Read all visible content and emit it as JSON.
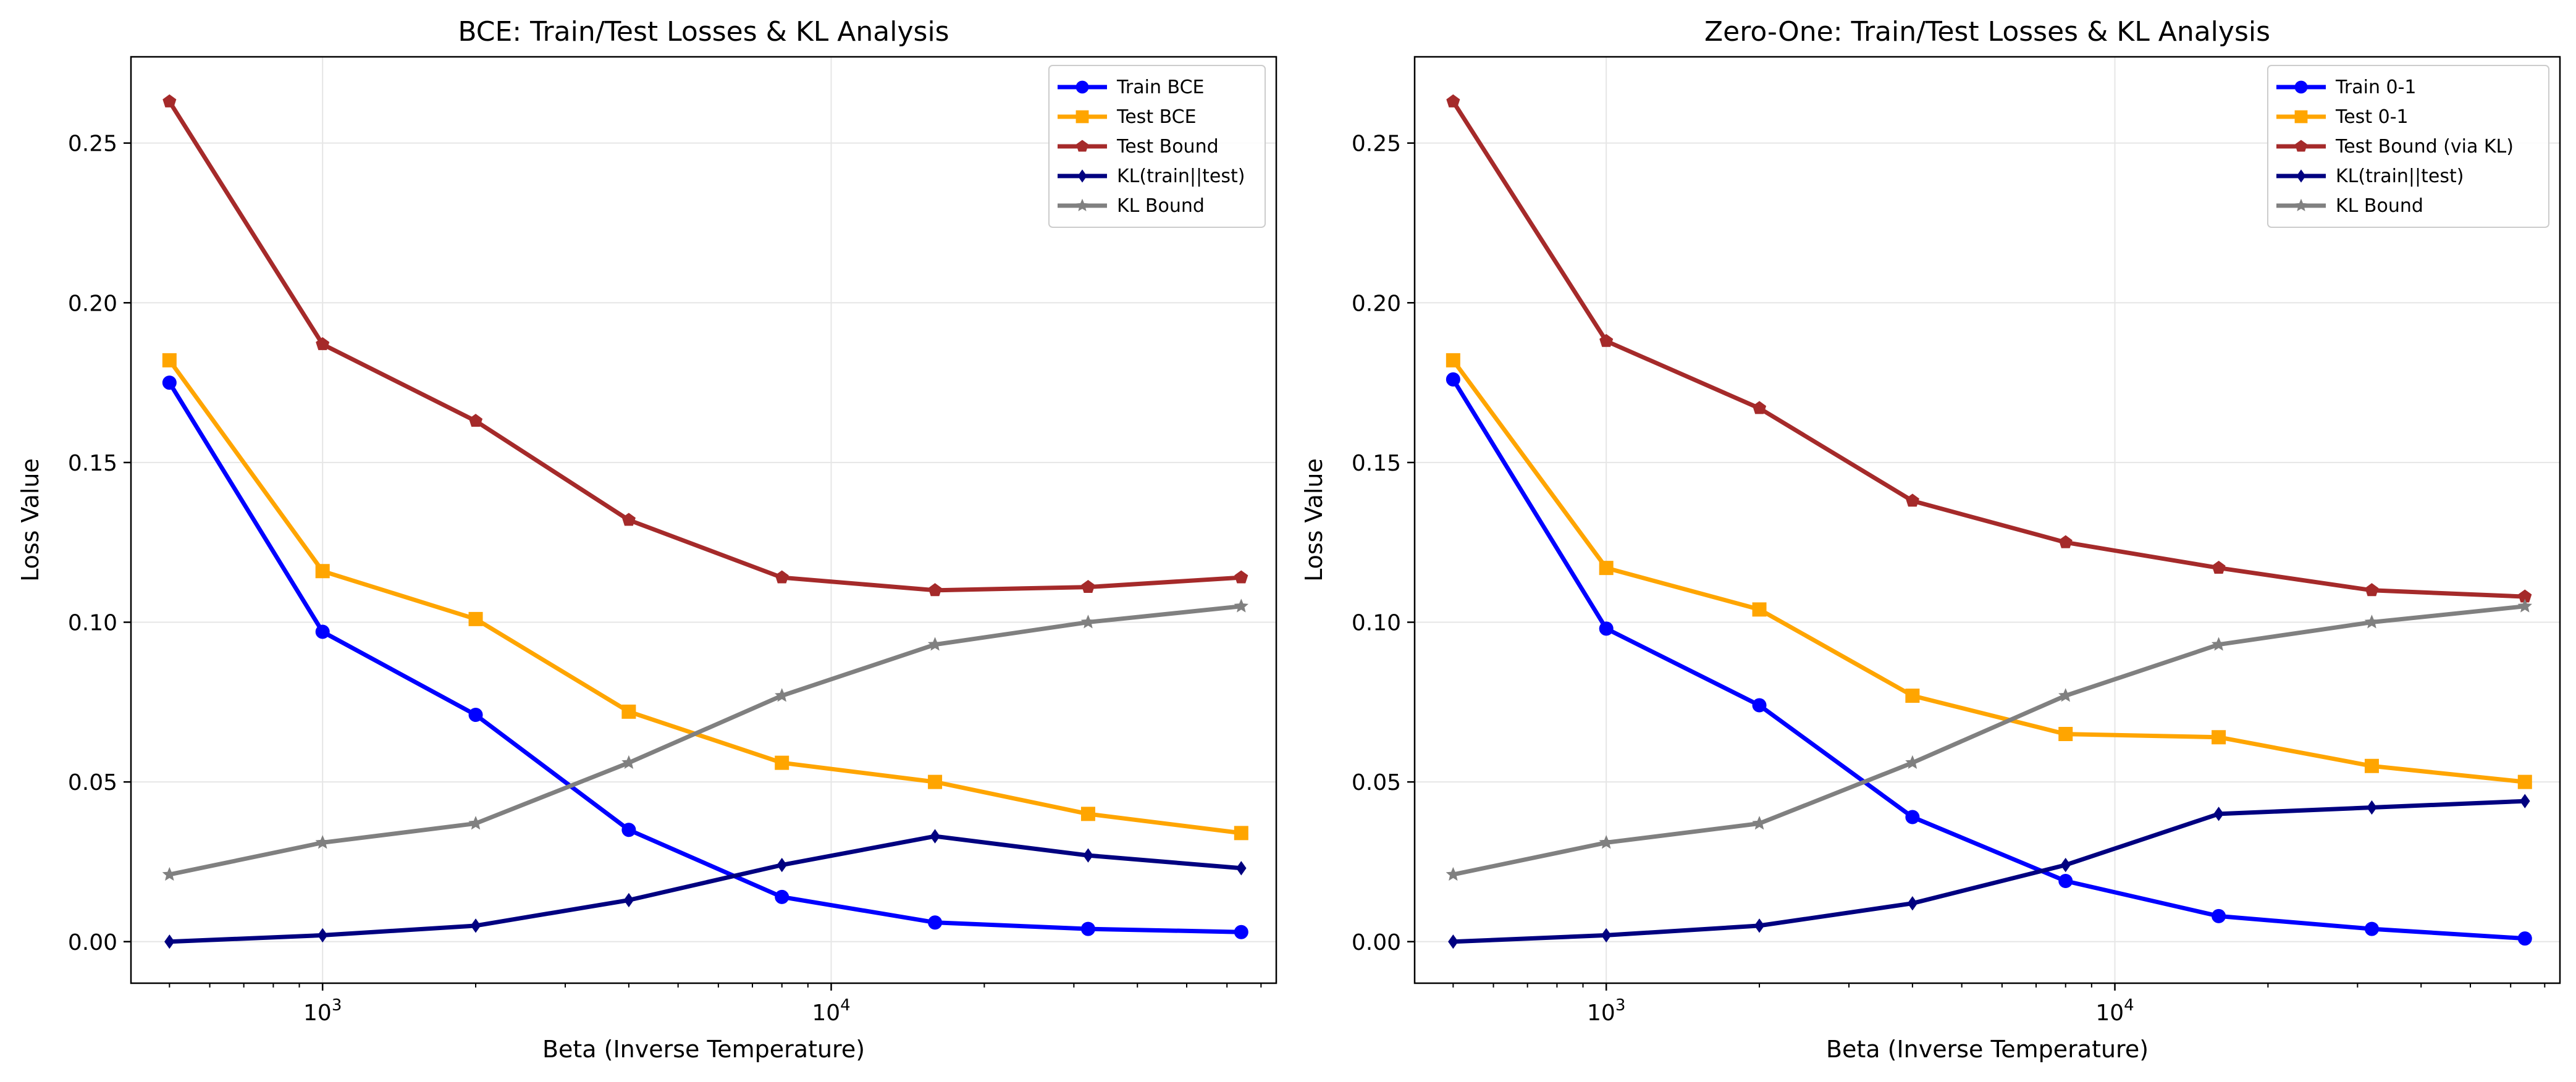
{
  "colors": {
    "train": "#0000ff",
    "test": "#ffa500",
    "bound": "#a52a2a",
    "kl": "#000080",
    "kl_bound": "#808080",
    "grid": "#e6e6e6"
  },
  "chart_data": [
    {
      "type": "line",
      "title": "BCE: Train/Test Losses & KL Analysis",
      "xlabel": "Beta (Inverse Temperature)",
      "ylabel": "Loss Value",
      "xscale": "log",
      "xlim": [
        420,
        75000
      ],
      "ylim": [
        -0.013,
        0.277
      ],
      "yticks": [
        "0.00",
        "0.05",
        "0.10",
        "0.15",
        "0.20",
        "0.25"
      ],
      "xticks": [
        {
          "base": "10",
          "exp": "3"
        },
        {
          "base": "10",
          "exp": "4"
        }
      ],
      "grid": true,
      "legend": "top-right",
      "x": [
        500,
        1000,
        2000,
        4000,
        8000,
        16000,
        32000,
        64000
      ],
      "series": [
        {
          "name": "Train BCE",
          "color": "#0000ff",
          "marker": "circle",
          "values": [
            0.175,
            0.097,
            0.071,
            0.035,
            0.014,
            0.006,
            0.004,
            0.003
          ]
        },
        {
          "name": "Test BCE",
          "color": "#ffa500",
          "marker": "square",
          "values": [
            0.182,
            0.116,
            0.101,
            0.072,
            0.056,
            0.05,
            0.04,
            0.034
          ]
        },
        {
          "name": "Test Bound",
          "color": "#a52a2a",
          "marker": "pentagon",
          "values": [
            0.263,
            0.187,
            0.163,
            0.132,
            0.114,
            0.11,
            0.111,
            0.114
          ]
        },
        {
          "name": "KL(train||test)",
          "color": "#000080",
          "marker": "diamond",
          "values": [
            0.0,
            0.002,
            0.005,
            0.013,
            0.024,
            0.033,
            0.027,
            0.023
          ]
        },
        {
          "name": "KL Bound",
          "color": "#808080",
          "marker": "star",
          "values": [
            0.021,
            0.031,
            0.037,
            0.056,
            0.077,
            0.093,
            0.1,
            0.105
          ]
        }
      ]
    },
    {
      "type": "line",
      "title": "Zero-One: Train/Test Losses & KL Analysis",
      "xlabel": "Beta (Inverse Temperature)",
      "ylabel": "Loss Value",
      "xscale": "log",
      "xlim": [
        420,
        75000
      ],
      "ylim": [
        -0.013,
        0.277
      ],
      "yticks": [
        "0.00",
        "0.05",
        "0.10",
        "0.15",
        "0.20",
        "0.25"
      ],
      "xticks": [
        {
          "base": "10",
          "exp": "3"
        },
        {
          "base": "10",
          "exp": "4"
        }
      ],
      "grid": true,
      "legend": "top-right",
      "x": [
        500,
        1000,
        2000,
        4000,
        8000,
        16000,
        32000,
        64000
      ],
      "series": [
        {
          "name": "Train 0-1",
          "color": "#0000ff",
          "marker": "circle",
          "values": [
            0.176,
            0.098,
            0.074,
            0.039,
            0.019,
            0.008,
            0.004,
            0.001
          ]
        },
        {
          "name": "Test 0-1",
          "color": "#ffa500",
          "marker": "square",
          "values": [
            0.182,
            0.117,
            0.104,
            0.077,
            0.065,
            0.064,
            0.055,
            0.05
          ]
        },
        {
          "name": "Test Bound (via KL)",
          "color": "#a52a2a",
          "marker": "pentagon",
          "values": [
            0.263,
            0.188,
            0.167,
            0.138,
            0.125,
            0.117,
            0.11,
            0.108
          ]
        },
        {
          "name": "KL(train||test)",
          "color": "#000080",
          "marker": "diamond",
          "values": [
            0.0,
            0.002,
            0.005,
            0.012,
            0.024,
            0.04,
            0.042,
            0.044
          ]
        },
        {
          "name": "KL Bound",
          "color": "#808080",
          "marker": "star",
          "values": [
            0.021,
            0.031,
            0.037,
            0.056,
            0.077,
            0.093,
            0.1,
            0.105
          ]
        }
      ]
    }
  ]
}
